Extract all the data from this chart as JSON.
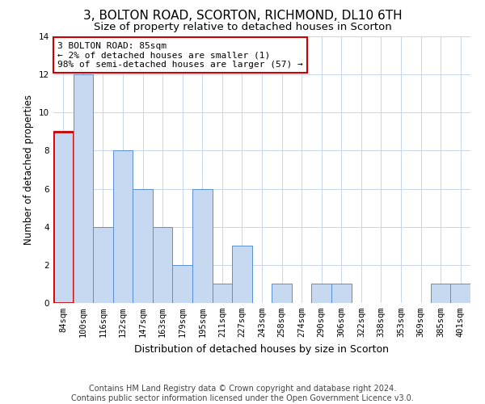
{
  "title": "3, BOLTON ROAD, SCORTON, RICHMOND, DL10 6TH",
  "subtitle": "Size of property relative to detached houses in Scorton",
  "xlabel": "Distribution of detached houses by size in Scorton",
  "ylabel": "Number of detached properties",
  "categories": [
    "84sqm",
    "100sqm",
    "116sqm",
    "132sqm",
    "147sqm",
    "163sqm",
    "179sqm",
    "195sqm",
    "211sqm",
    "227sqm",
    "243sqm",
    "258sqm",
    "274sqm",
    "290sqm",
    "306sqm",
    "322sqm",
    "338sqm",
    "353sqm",
    "369sqm",
    "385sqm",
    "401sqm"
  ],
  "values": [
    9,
    12,
    4,
    8,
    6,
    4,
    2,
    6,
    1,
    3,
    0,
    1,
    0,
    1,
    1,
    0,
    0,
    0,
    0,
    1,
    1
  ],
  "highlight_index": 0,
  "bar_color": "#c7d9f0",
  "bar_edge_color": "#5b8fd4",
  "highlight_bar_edge_color": "#cc0000",
  "annotation_text": "3 BOLTON ROAD: 85sqm\n← 2% of detached houses are smaller (1)\n98% of semi-detached houses are larger (57) →",
  "annotation_box_edge": "#cc0000",
  "ylim": [
    0,
    14
  ],
  "yticks": [
    0,
    2,
    4,
    6,
    8,
    10,
    12,
    14
  ],
  "footer_line1": "Contains HM Land Registry data © Crown copyright and database right 2024.",
  "footer_line2": "Contains public sector information licensed under the Open Government Licence v3.0.",
  "bg_color": "#ffffff",
  "grid_color": "#c8d4e8",
  "title_fontsize": 11,
  "subtitle_fontsize": 9.5,
  "tick_fontsize": 7.5,
  "ylabel_fontsize": 8.5,
  "xlabel_fontsize": 9,
  "annotation_fontsize": 8,
  "footer_fontsize": 7
}
